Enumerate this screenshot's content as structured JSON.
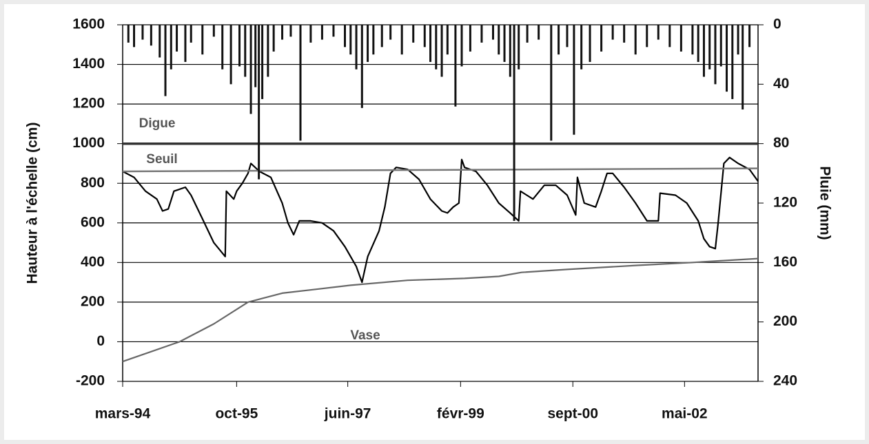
{
  "chart_data": {
    "type": "line",
    "y_label": "Hauteur à l'échelle (cm)",
    "y2_label": "Pluie (mm)",
    "xlim": [
      0,
      111.5
    ],
    "xticks": [
      {
        "value": 0,
        "label": "mars-94"
      },
      {
        "value": 20,
        "label": "oct-95"
      },
      {
        "value": 39.5,
        "label": "juin-97"
      },
      {
        "value": 59.3,
        "label": "févr-99"
      },
      {
        "value": 79,
        "label": "sept-00"
      },
      {
        "value": 98.6,
        "label": "mai-02"
      }
    ],
    "ylim": [
      -200,
      1600
    ],
    "yticks": [
      -200,
      0,
      200,
      400,
      600,
      800,
      1000,
      1200,
      1400,
      1600
    ],
    "y2lim": [
      240,
      0
    ],
    "y2ticks": [
      240,
      200,
      160,
      120,
      80,
      40,
      0
    ],
    "grid": true,
    "series": [
      {
        "type": "line",
        "color": "#000000",
        "x": [
          0,
          2,
          4,
          6,
          7,
          8,
          9,
          11,
          12,
          14,
          16,
          18,
          18.2,
          19.5,
          20,
          21,
          22,
          22.5,
          24,
          26,
          28,
          29,
          30,
          31,
          33,
          35,
          37,
          39,
          41,
          42,
          43,
          45,
          46,
          47,
          48,
          50,
          52,
          54,
          56,
          57,
          58,
          59,
          59.5,
          60,
          62,
          64,
          66,
          68,
          69.5,
          69.8,
          72,
          74,
          76,
          78,
          79.5,
          79.8,
          81,
          83,
          84,
          85,
          86,
          88,
          90,
          92,
          94,
          94.3,
          97,
          99,
          101,
          102,
          103,
          104,
          104.5,
          105.5,
          106.5,
          108,
          110,
          111.5
        ],
        "values": [
          860,
          830,
          760,
          720,
          660,
          670,
          760,
          780,
          740,
          620,
          500,
          430,
          760,
          720,
          760,
          800,
          850,
          900,
          860,
          830,
          700,
          600,
          540,
          610,
          610,
          600,
          560,
          480,
          380,
          300,
          430,
          560,
          680,
          850,
          880,
          870,
          820,
          720,
          660,
          650,
          680,
          700,
          920,
          880,
          860,
          790,
          700,
          650,
          610,
          760,
          720,
          790,
          790,
          740,
          640,
          830,
          700,
          680,
          760,
          850,
          850,
          780,
          700,
          610,
          610,
          750,
          740,
          700,
          610,
          520,
          480,
          470,
          600,
          900,
          930,
          900,
          870,
          810
        ]
      },
      {
        "type": "line",
        "name": "Digue",
        "color": "#333333",
        "x": [
          0,
          111.5
        ],
        "values": [
          1000,
          1000
        ]
      },
      {
        "type": "line",
        "name": "Seuil",
        "color": "#777777",
        "x": [
          0,
          111.5
        ],
        "values": [
          860,
          875
        ]
      },
      {
        "type": "line",
        "name": "Vase",
        "color": "#666666",
        "x": [
          0,
          10,
          16,
          22,
          28,
          34,
          40,
          50,
          60,
          66,
          70,
          78,
          90,
          100,
          111.5
        ],
        "values": [
          -100,
          0,
          90,
          200,
          245,
          265,
          285,
          310,
          320,
          330,
          350,
          365,
          385,
          400,
          420
        ]
      },
      {
        "type": "bar",
        "axis": "y2",
        "color": "#111111",
        "x": [
          1,
          2,
          3.5,
          5,
          6.5,
          7.5,
          8.5,
          9.5,
          11,
          12,
          14,
          16,
          17.5,
          19,
          20.5,
          21.5,
          22.5,
          23.3,
          23.9,
          24.5,
          25.5,
          26.5,
          28,
          29.5,
          31.2,
          33,
          35,
          37,
          39,
          40,
          41,
          42,
          43,
          44,
          45.5,
          47,
          49,
          51,
          53,
          54,
          55,
          56,
          57,
          58.4,
          59.5,
          61,
          63,
          65,
          66,
          67,
          68,
          68.7,
          69.5,
          71,
          73,
          75.2,
          76.5,
          78,
          79.2,
          80.5,
          82,
          84,
          86,
          88,
          90,
          92,
          94,
          96,
          98,
          100,
          101,
          102,
          103,
          104,
          105,
          106,
          107,
          108,
          108.8,
          110
        ],
        "values": [
          12,
          15,
          10,
          14,
          22,
          48,
          30,
          18,
          25,
          12,
          20,
          8,
          30,
          40,
          28,
          35,
          60,
          42,
          104,
          50,
          35,
          18,
          10,
          8,
          78,
          12,
          10,
          8,
          15,
          20,
          30,
          56,
          25,
          20,
          15,
          10,
          20,
          12,
          15,
          25,
          30,
          35,
          20,
          55,
          28,
          18,
          12,
          10,
          20,
          25,
          35,
          132,
          30,
          12,
          10,
          78,
          20,
          15,
          74,
          30,
          25,
          18,
          10,
          12,
          20,
          15,
          10,
          15,
          18,
          20,
          25,
          35,
          30,
          40,
          28,
          45,
          50,
          20,
          57,
          15
        ]
      }
    ]
  }
}
